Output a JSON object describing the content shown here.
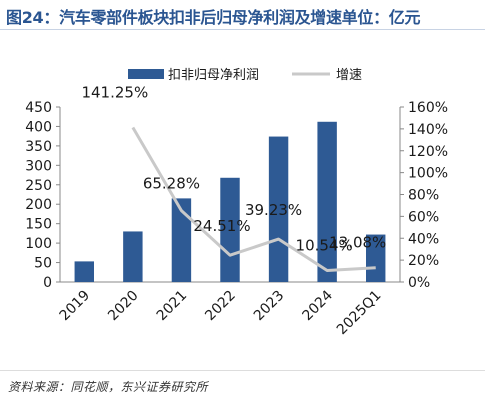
{
  "title": "图24：汽车零部件板块扣非后归母净利润及增速单位：亿元",
  "source": "资料来源：同花顺，东兴证券研究所",
  "colors": {
    "bar": "#2e5a94",
    "line": "#c9c9c9",
    "title": "#2a5591",
    "text": "#1a1a1a"
  },
  "chart_data": {
    "type": "bar",
    "categories": [
      "2019",
      "2020",
      "2021",
      "2022",
      "2023",
      "2024",
      "2025Q1"
    ],
    "series": [
      {
        "name": "扣非归母净利润",
        "type": "bar",
        "axis": "left",
        "values": [
          53,
          130,
          215,
          268,
          374,
          412,
          122
        ]
      },
      {
        "name": "增速",
        "type": "line",
        "axis": "right",
        "values": [
          null,
          141.25,
          65.28,
          24.51,
          39.23,
          10.54,
          13.08
        ],
        "labels": [
          "",
          "141.25%",
          "65.28%",
          "24.51%",
          "39.23%",
          "10.54%",
          "13.08%"
        ]
      }
    ],
    "ylim": [
      0,
      450
    ],
    "yticks": [
      "0",
      "50",
      "100",
      "150",
      "200",
      "250",
      "300",
      "350",
      "400",
      "450"
    ],
    "y2lim": [
      0,
      160
    ],
    "y2ticks": [
      "0%",
      "20%",
      "40%",
      "60%",
      "80%",
      "100%",
      "120%",
      "140%",
      "160%"
    ],
    "legend_position": "top-center",
    "grid": false
  }
}
